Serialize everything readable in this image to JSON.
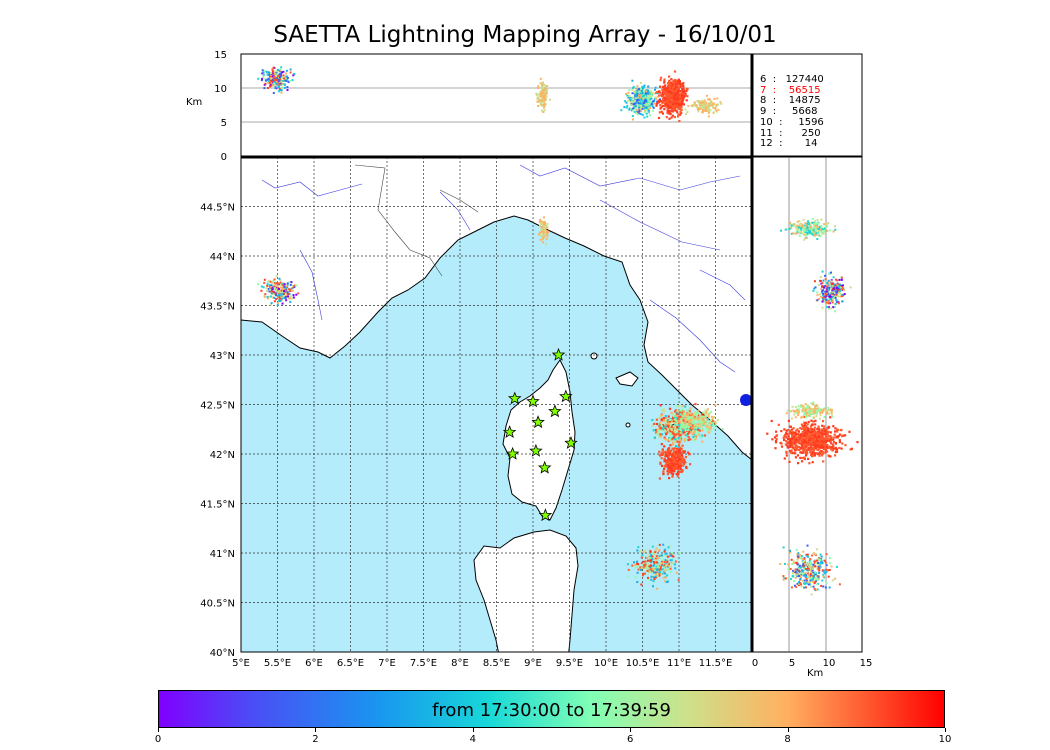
{
  "title": "SAETTA Lightning Mapping Array - 16/10/01",
  "map": {
    "lon_ticks": [
      "5°E",
      "5.5°E",
      "6°E",
      "6.5°E",
      "7°E",
      "7.5°E",
      "8°E",
      "8.5°E",
      "9°E",
      "9.5°E",
      "10°E",
      "10.5°E",
      "11°E",
      "11.5°E"
    ],
    "lat_ticks": [
      "40°N",
      "40.5°N",
      "41°N",
      "41.5°N",
      "42°N",
      "42.5°N",
      "43°N",
      "43.5°N",
      "44°N",
      "44.5°N"
    ],
    "lon_range": [
      5,
      12
    ],
    "lat_range": [
      40,
      45
    ],
    "sea_color": "#b5ecfb",
    "station_icon": "star-icon",
    "stations": [
      {
        "lon": 9.35,
        "lat": 43.0
      },
      {
        "lon": 8.75,
        "lat": 42.56
      },
      {
        "lon": 9.0,
        "lat": 42.53
      },
      {
        "lon": 9.45,
        "lat": 42.58
      },
      {
        "lon": 9.3,
        "lat": 42.43
      },
      {
        "lon": 9.07,
        "lat": 42.32
      },
      {
        "lon": 8.68,
        "lat": 42.22
      },
      {
        "lon": 9.52,
        "lat": 42.11
      },
      {
        "lon": 8.72,
        "lat": 42.0
      },
      {
        "lon": 9.04,
        "lat": 42.03
      },
      {
        "lon": 9.16,
        "lat": 41.86
      },
      {
        "lon": 9.17,
        "lat": 41.38
      }
    ]
  },
  "altitude_panel": {
    "ylabel": "Km",
    "y_ticks": [
      "0",
      "5",
      "10",
      "15"
    ]
  },
  "side_panel": {
    "xlabel": "Km",
    "x_ticks": [
      "0",
      "5",
      "10",
      "15"
    ]
  },
  "legend": {
    "rows": [
      {
        "text": "6  :   127440",
        "color": "#000000"
      },
      {
        "text": "7  :    56515",
        "color": "#ff0000"
      },
      {
        "text": "8  :    14875",
        "color": "#000000"
      },
      {
        "text": "9  :     5668",
        "color": "#000000"
      },
      {
        "text": "10  :     1596",
        "color": "#000000"
      },
      {
        "text": "11  :      250",
        "color": "#000000"
      },
      {
        "text": "12  :       14",
        "color": "#000000"
      }
    ]
  },
  "colorbar": {
    "label": "from 17:30:00 to 17:39:59",
    "ticks": [
      "0",
      "2",
      "4",
      "6",
      "8",
      "10"
    ],
    "range": [
      0,
      10
    ],
    "colormap": "rainbow"
  }
}
